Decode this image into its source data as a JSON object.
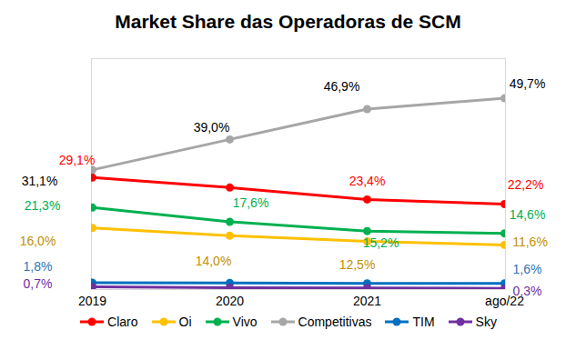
{
  "chart_data": {
    "type": "line",
    "title": "Market Share das Operadoras de SCM",
    "categories": [
      "2019",
      "2020",
      "2021",
      "ago/22"
    ],
    "ylim": [
      0,
      60
    ],
    "yticks": [],
    "grid": false,
    "tick_labels": "x",
    "legend": "bottom",
    "data_labels": true,
    "series": [
      {
        "name": "Claro",
        "color": "#ff0000",
        "marker": "circle",
        "line_style": "solid",
        "values": [
          29.1,
          26.5,
          23.4,
          22.2
        ],
        "value_labels": [
          "29,1%",
          null,
          "23,4%",
          "22,2%"
        ]
      },
      {
        "name": "Oi",
        "color": "#ffc000",
        "marker": "circle",
        "line_style": "solid",
        "values": [
          16.0,
          14.0,
          12.5,
          11.6
        ],
        "value_labels": [
          "16,0%",
          "14,0%",
          "12,5%",
          "11,6%"
        ]
      },
      {
        "name": "Vivo",
        "color": "#00b050",
        "marker": "circle",
        "line_style": "solid",
        "values": [
          21.3,
          17.6,
          15.2,
          14.6
        ],
        "value_labels": [
          "21,3%",
          "17,6%",
          "15,2%",
          "14,6%"
        ]
      },
      {
        "name": "Competitivas",
        "color": "#a6a6a6",
        "marker": "circle",
        "line_style": "solid",
        "values": [
          31.1,
          39.0,
          46.9,
          49.7
        ],
        "value_labels": [
          "31,1%",
          "39,0%",
          "46,9%",
          "49,7%"
        ]
      },
      {
        "name": "TIM",
        "color": "#0070c0",
        "marker": "circle",
        "line_style": "solid",
        "values": [
          1.8,
          1.7,
          1.6,
          1.6
        ],
        "value_labels": [
          "1,8%",
          null,
          null,
          "1,6%"
        ]
      },
      {
        "name": "Sky",
        "color": "#7030a0",
        "marker": "circle",
        "line_style": "solid",
        "values": [
          0.7,
          0.5,
          0.4,
          0.3
        ],
        "value_labels": [
          "0,7%",
          null,
          null,
          "0,3%"
        ]
      }
    ]
  }
}
